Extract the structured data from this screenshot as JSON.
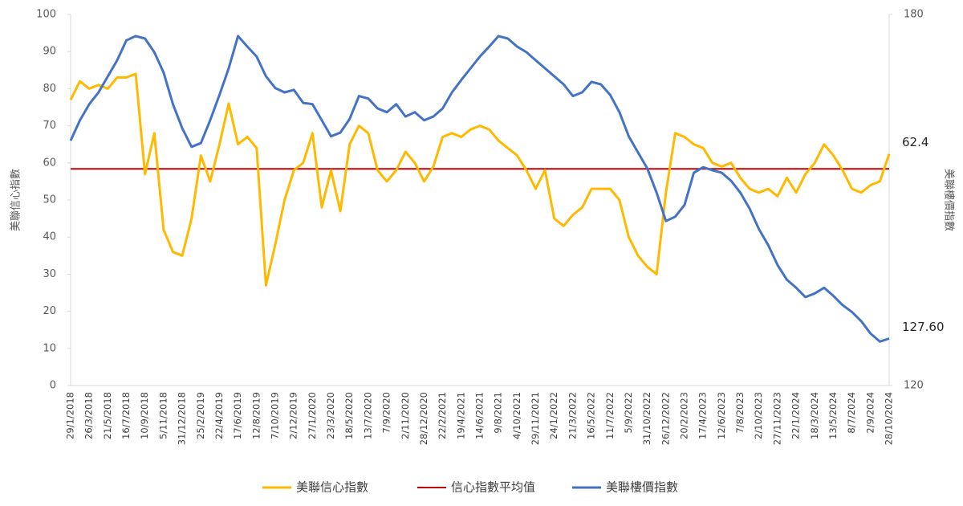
{
  "chart_data": {
    "type": "line",
    "y_label": "美聯信心指數",
    "y2_label": "美聯樓價指數",
    "categories": [
      "29/1/2018",
      null,
      "26/3/2018",
      null,
      "21/5/2018",
      null,
      "16/7/2018",
      null,
      "10/9/2018",
      null,
      "5/11/2018",
      null,
      "31/12/2018",
      null,
      "25/2/2019",
      null,
      "22/4/2019",
      null,
      "17/6/2019",
      null,
      "12/8/2019",
      null,
      "7/10/2019",
      null,
      "2/12/2019",
      null,
      "27/1/2020",
      null,
      "23/3/2020",
      null,
      "18/5/2020",
      null,
      "13/7/2020",
      null,
      "7/9/2020",
      null,
      "2/11/2020",
      null,
      "28/12/2020",
      null,
      "22/2/2021",
      null,
      "19/4/2021",
      null,
      "14/6/2021",
      null,
      "9/8/2021",
      null,
      "4/10/2021",
      null,
      "29/11/2021",
      null,
      "24/1/2022",
      null,
      "21/3/2022",
      null,
      "16/5/2022",
      null,
      "11/7/2022",
      null,
      "5/9/2022",
      null,
      "31/10/2022",
      null,
      "26/12/2022",
      null,
      "20/2/2023",
      null,
      "17/4/2023",
      null,
      "12/6/2023",
      null,
      "7/8/2023",
      null,
      "2/10/2023",
      null,
      "27/11/2023",
      null,
      "22/1/2024",
      null,
      "18/3/2024",
      null,
      "13/5/2024",
      null,
      "8/7/2024",
      null,
      "2/9/2024",
      null,
      "28/10/2024"
    ],
    "series": [
      {
        "name": "美聯信心指數",
        "color": "#ffb900",
        "axis": "y",
        "values": [
          77,
          82,
          80,
          81,
          80,
          83,
          83,
          84,
          57,
          68,
          42,
          36,
          35,
          45,
          62,
          55,
          65,
          76,
          65,
          67,
          64,
          27,
          38,
          50,
          58,
          60,
          68,
          48,
          58,
          47,
          65,
          70,
          68,
          58,
          55,
          58,
          63,
          60,
          55,
          59,
          67,
          68,
          67,
          69,
          70,
          69,
          66,
          64,
          62,
          58,
          53,
          58,
          45,
          43,
          46,
          48,
          53,
          53,
          53,
          50,
          40,
          35,
          32,
          30,
          52,
          68,
          67,
          65,
          64,
          60,
          59,
          60,
          56,
          53,
          52,
          53,
          51,
          56,
          52,
          57,
          60,
          65,
          62,
          58,
          53,
          52,
          54,
          55,
          62.4
        ]
      },
      {
        "name": "美聯樓價指數",
        "color": "#4472c4",
        "axis": "y2",
        "values": [
          159.6,
          162.9,
          165.5,
          167.4,
          170,
          172.6,
          175.8,
          176.5,
          176.1,
          173.9,
          170.6,
          165.5,
          161.6,
          158.6,
          159.2,
          162.9,
          167,
          171.3,
          176.5,
          174.8,
          173.2,
          170,
          168.1,
          167.4,
          167.8,
          165.7,
          165.5,
          162.9,
          160.3,
          160.9,
          163.1,
          166.8,
          166.4,
          164.8,
          164.2,
          165.5,
          163.5,
          164.2,
          162.9,
          163.5,
          164.8,
          167.4,
          169.4,
          171.3,
          173.2,
          174.8,
          176.5,
          176.1,
          174.8,
          173.9,
          172.6,
          171.3,
          170,
          168.7,
          166.8,
          167.4,
          169.1,
          168.7,
          167,
          164.2,
          160.3,
          157.7,
          155.1,
          151.2,
          146.6,
          147.3,
          149.2,
          154.4,
          155.3,
          154.8,
          154.4,
          153.1,
          151.2,
          148.6,
          145.3,
          142.7,
          139.5,
          137.1,
          135.8,
          134.3,
          134.9,
          135.8,
          134.5,
          133,
          131.9,
          130.4,
          128.4,
          127.1,
          127.6
        ]
      }
    ],
    "reference_lines": [
      {
        "name": "信心指數平均值",
        "value": 58.4,
        "color": "#c00000",
        "axis": "y"
      }
    ],
    "annotations": [
      {
        "text": "62.4",
        "series": 0
      },
      {
        "text": "127.60",
        "series": 1
      }
    ],
    "ylim": [
      0,
      100
    ],
    "yticks": [
      0,
      10,
      20,
      30,
      40,
      50,
      60,
      70,
      80,
      90,
      100
    ],
    "y2lim": [
      120,
      180
    ],
    "y2ticks": [
      120,
      180
    ],
    "legend": "bottom"
  }
}
